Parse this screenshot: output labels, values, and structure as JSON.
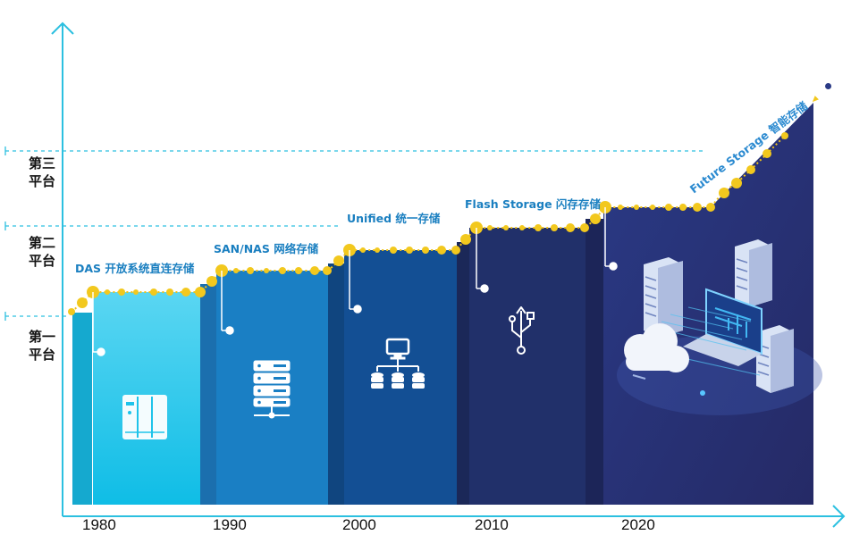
{
  "platforms": [
    {
      "label_line1": "第三",
      "label_line2": "平台"
    },
    {
      "label_line1": "第二",
      "label_line2": "平台"
    },
    {
      "label_line1": "第一",
      "label_line2": "平台"
    }
  ],
  "years": [
    "1980",
    "1990",
    "2000",
    "2010",
    "2020"
  ],
  "eras": [
    {
      "label": "DAS 开放系统直连存储",
      "icon": "nas-device-icon",
      "color": "#1ec3ea"
    },
    {
      "label": "SAN/NAS 网络存储",
      "icon": "server-rack-icon",
      "color": "#1a7fc4"
    },
    {
      "label": "Unified 统一存储",
      "icon": "network-storage-icon",
      "color": "#134f94"
    },
    {
      "label": "Flash Storage 闪存存储",
      "icon": "usb-icon",
      "color": "#21306a"
    },
    {
      "label": "Future Storage 智能存储",
      "icon": "datacenter-illustration",
      "color": "#2a327a"
    }
  ],
  "decor": {
    "rocket_icon": "rocket-icon",
    "accent_color": "#f0c21a",
    "axis_color": "#2cc0e0"
  }
}
